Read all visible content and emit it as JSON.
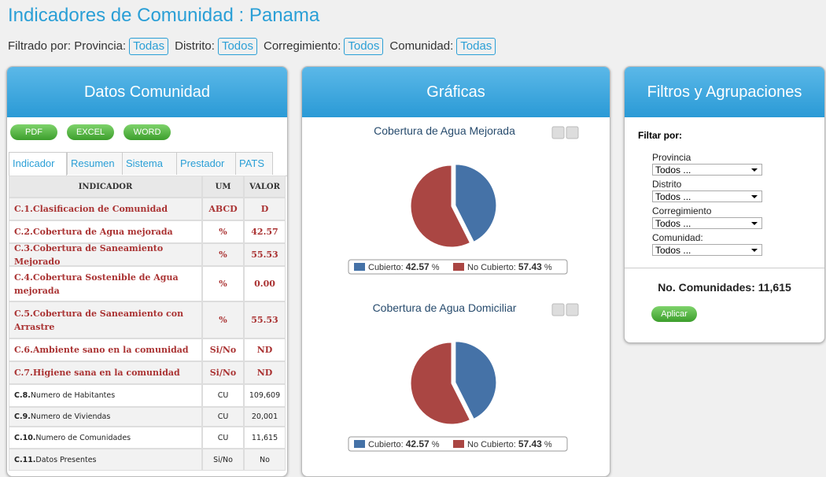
{
  "header": {
    "title": "Indicadores de Comunidad : Panama",
    "filter_label": "Filtrado por:",
    "filters": [
      {
        "label": "Provincia:",
        "value": "Todas"
      },
      {
        "label": "Distrito:",
        "value": "Todos"
      },
      {
        "label": "Corregimiento:",
        "value": "Todos"
      },
      {
        "label": "Comunidad:",
        "value": "Todas"
      }
    ]
  },
  "datos": {
    "title": "Datos Comunidad",
    "buttons": [
      "PDF",
      "EXCEL",
      "WORD"
    ],
    "tabs": [
      "Indicador",
      "Resumen",
      "Sistema",
      "Prestador",
      "PATS"
    ],
    "table": {
      "columns": [
        "INDICADOR",
        "UM",
        "VALOR"
      ],
      "rows": [
        {
          "code": "C.1.",
          "text": "Clasificacion de Comunidad",
          "um": "ABCD",
          "valor": "D",
          "highlight": true
        },
        {
          "code": "C.2.",
          "text": "Cobertura de Agua mejorada",
          "um": "%",
          "valor": "42.57",
          "highlight": true
        },
        {
          "code": "C.3.",
          "text": "Cobertura de Saneamiento Mejorado",
          "um": "%",
          "valor": "55.53",
          "highlight": true
        },
        {
          "code": "C.4.",
          "text": "Cobertura Sostenible de Agua mejorada",
          "um": "%",
          "valor": "0.00",
          "highlight": true
        },
        {
          "code": "C.5.",
          "text": "Cobertura de Saneamiento con Arrastre",
          "um": "%",
          "valor": "55.53",
          "highlight": true
        },
        {
          "code": "C.6.",
          "text": "Ambiente sano en la comunidad",
          "um": "Si/No",
          "valor": "ND",
          "highlight": true
        },
        {
          "code": "C.7.",
          "text": "Higiene sana en la comunidad",
          "um": "Si/No",
          "valor": "ND",
          "highlight": true
        },
        {
          "code": "C.8.",
          "text": "Numero de Habitantes",
          "um": "CU",
          "valor": "109,609",
          "highlight": false
        },
        {
          "code": "C.9.",
          "text": "Numero de Viviendas",
          "um": "CU",
          "valor": "20,001",
          "highlight": false
        },
        {
          "code": "C.10.",
          "text": "Numero de Comunidades",
          "um": "CU",
          "valor": "11,615",
          "highlight": false
        },
        {
          "code": "C.11.",
          "text": "Datos Presentes",
          "um": "Si/No",
          "valor": "No",
          "highlight": false
        }
      ]
    }
  },
  "graficas": {
    "title": "Gráficas"
  },
  "chart_data": [
    {
      "type": "pie",
      "title": "Cobertura de Agua Mejorada",
      "unit": "%",
      "series": [
        {
          "name": "Cubierto:",
          "color": "#4572a7",
          "value": 42.57
        },
        {
          "name": "No Cubierto:",
          "color": "#aa4643",
          "value": 57.43
        }
      ]
    },
    {
      "type": "pie",
      "title": "Cobertura de Agua Domiciliar",
      "unit": "%",
      "series": [
        {
          "name": "Cubierto:",
          "color": "#4572a7",
          "value": 42.57
        },
        {
          "name": "No Cubierto:",
          "color": "#aa4643",
          "value": 57.43
        }
      ]
    }
  ],
  "filtros": {
    "title": "Filtros y Agrupaciones",
    "filter_label": "Filtar por:",
    "fields": [
      {
        "label": "Provincia",
        "value": "Todos ..."
      },
      {
        "label": "Distrito",
        "value": "Todos ..."
      },
      {
        "label": "Corregimiento",
        "value": "Todos ..."
      },
      {
        "label": "Comunidad:",
        "value": "Todos ..."
      }
    ],
    "count": "No. Comunidades: 11,615",
    "button": "Aplicar"
  }
}
